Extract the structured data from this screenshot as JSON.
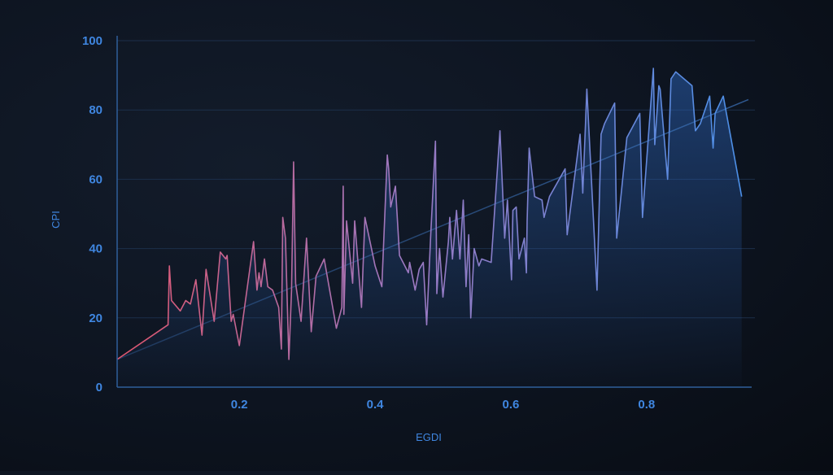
{
  "colors": {
    "background": "#0d1420",
    "axis": "#2f5f9a",
    "grid": "#1c2f4a",
    "tick_text": "#3f86e0",
    "line_start": "#e0566e",
    "line_mid": "#9d78c0",
    "line_end": "#4a90e8",
    "area_fill": "#2a5fb0",
    "trendline": "#3a6fb5"
  },
  "chart_data": {
    "type": "area",
    "xlabel": "EGDI",
    "ylabel": "CPI",
    "xlim": [
      0.02,
      0.95
    ],
    "ylim": [
      0,
      100
    ],
    "xticks": [
      0.2,
      0.4,
      0.6,
      0.8
    ],
    "xtick_labels": [
      "0.2",
      "0.4",
      "0.6",
      "0.8"
    ],
    "yticks": [
      0,
      20,
      40,
      60,
      80,
      100
    ],
    "ytick_labels": [
      "0",
      "20",
      "40",
      "60",
      "80",
      "100"
    ],
    "grid": "horizontal",
    "trendline": {
      "x": [
        0.02,
        0.95
      ],
      "y": [
        8,
        83
      ]
    },
    "series": [
      {
        "x": [
          0.02,
          0.095,
          0.097,
          0.1,
          0.113,
          0.121,
          0.128,
          0.136,
          0.145,
          0.151,
          0.163,
          0.172,
          0.18,
          0.182,
          0.188,
          0.191,
          0.2,
          0.221,
          0.226,
          0.229,
          0.232,
          0.237,
          0.242,
          0.249,
          0.258,
          0.262,
          0.264,
          0.268,
          0.273,
          0.277,
          0.28,
          0.283,
          0.291,
          0.299,
          0.306,
          0.313,
          0.325,
          0.343,
          0.351,
          0.353,
          0.354,
          0.358,
          0.367,
          0.37,
          0.38,
          0.385,
          0.4,
          0.41,
          0.418,
          0.42,
          0.423,
          0.43,
          0.436,
          0.449,
          0.451,
          0.459,
          0.465,
          0.471,
          0.476,
          0.482,
          0.489,
          0.491,
          0.495,
          0.5,
          0.508,
          0.51,
          0.514,
          0.52,
          0.525,
          0.53,
          0.534,
          0.538,
          0.541,
          0.546,
          0.553,
          0.557,
          0.571,
          0.584,
          0.591,
          0.595,
          0.601,
          0.603,
          0.608,
          0.612,
          0.62,
          0.623,
          0.624,
          0.627,
          0.635,
          0.646,
          0.649,
          0.657,
          0.68,
          0.683,
          0.702,
          0.706,
          0.712,
          0.727,
          0.733,
          0.738,
          0.753,
          0.756,
          0.771,
          0.79,
          0.794,
          0.81,
          0.812,
          0.818,
          0.82,
          0.831,
          0.836,
          0.843,
          0.867,
          0.872,
          0.879,
          0.893,
          0.898,
          0.901,
          0.913,
          0.94
        ],
        "y": [
          8,
          18,
          35,
          25,
          22,
          25,
          24,
          31,
          15,
          34,
          19,
          39,
          37,
          38,
          19,
          21,
          12,
          42,
          28,
          33,
          29,
          37,
          29,
          28,
          23,
          11,
          49,
          43,
          8,
          28,
          65,
          30,
          19,
          43,
          16,
          32,
          37,
          17,
          23,
          58,
          21,
          48,
          30,
          48,
          23,
          49,
          35,
          29,
          67,
          63,
          52,
          58,
          38,
          33,
          36,
          28,
          34,
          36,
          18,
          44,
          71,
          27,
          40,
          26,
          42,
          49,
          37,
          51,
          37,
          54,
          29,
          44,
          20,
          40,
          35,
          37,
          36,
          74,
          43,
          54,
          31,
          51,
          52,
          37,
          43,
          33,
          48,
          69,
          55,
          54,
          49,
          55,
          63,
          44,
          73,
          56,
          86,
          28,
          73,
          76,
          82,
          43,
          72,
          79,
          49,
          92,
          70,
          87,
          86,
          60,
          89,
          91,
          87,
          74,
          76,
          84,
          69,
          79,
          84,
          55
        ]
      }
    ]
  }
}
